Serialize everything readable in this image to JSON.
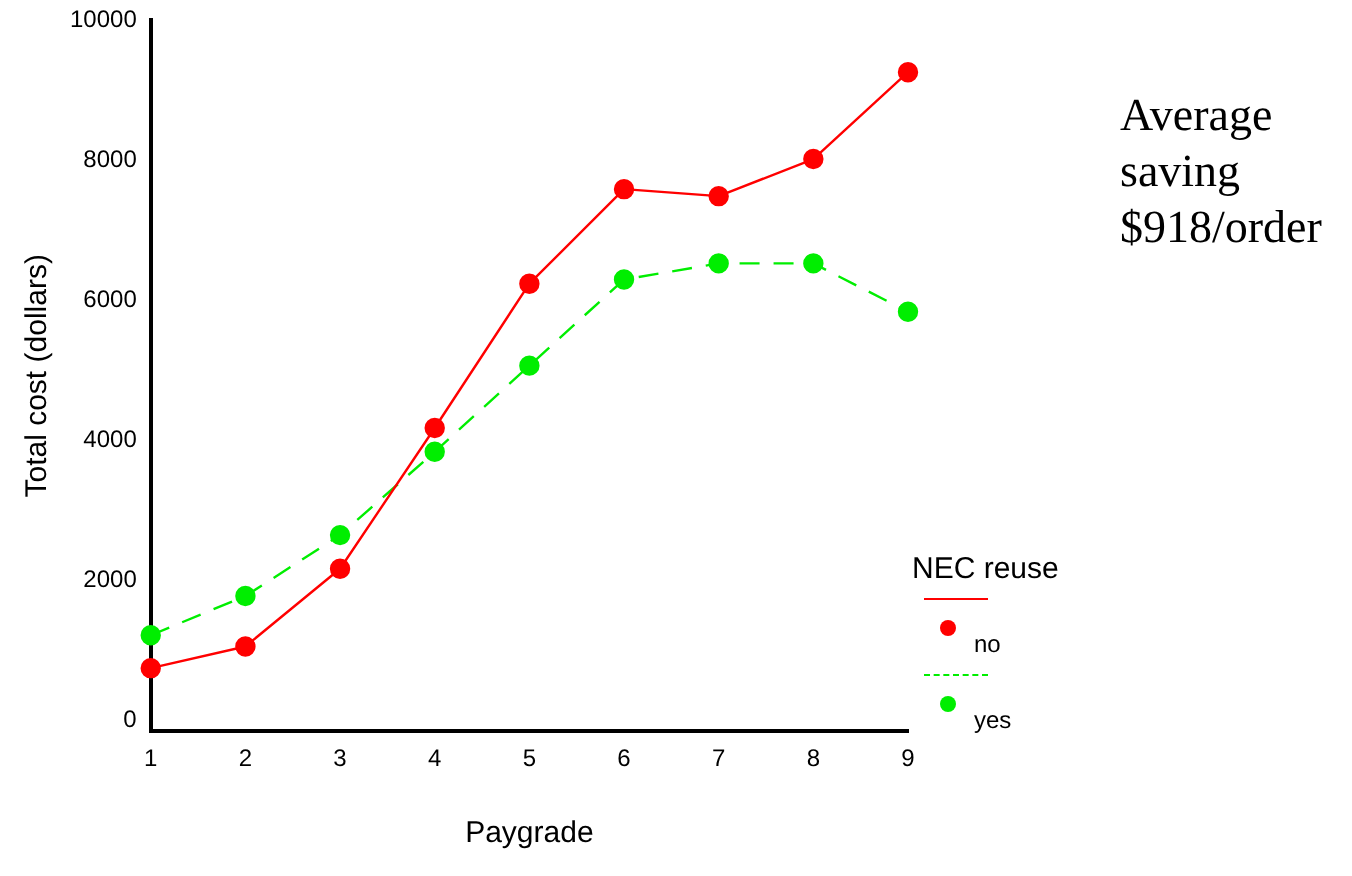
{
  "chart_data": {
    "type": "line",
    "xlabel": "Paygrade",
    "ylabel": "Total cost (dollars)",
    "legend_title": "NEC reuse",
    "legend": "right",
    "grid": false,
    "marker": "circle",
    "categories": [
      "1",
      "2",
      "3",
      "4",
      "5",
      "6",
      "7",
      "8",
      "9"
    ],
    "ylim": [
      -150,
      10000
    ],
    "yticks": [
      0,
      2000,
      4000,
      6000,
      8000,
      10000
    ],
    "annotations": [
      "Average saving $918/order"
    ],
    "series": [
      {
        "name": "no",
        "color": "#ff0000",
        "line_style": "solid",
        "values": [
          750,
          1060,
          2170,
          4180,
          6240,
          7590,
          7490,
          8020,
          9260
        ]
      },
      {
        "name": "yes",
        "color": "#00ee00",
        "line_style": "dashed",
        "values": [
          1220,
          1780,
          2650,
          3840,
          5070,
          6300,
          6530,
          6530,
          5840
        ]
      }
    ]
  }
}
